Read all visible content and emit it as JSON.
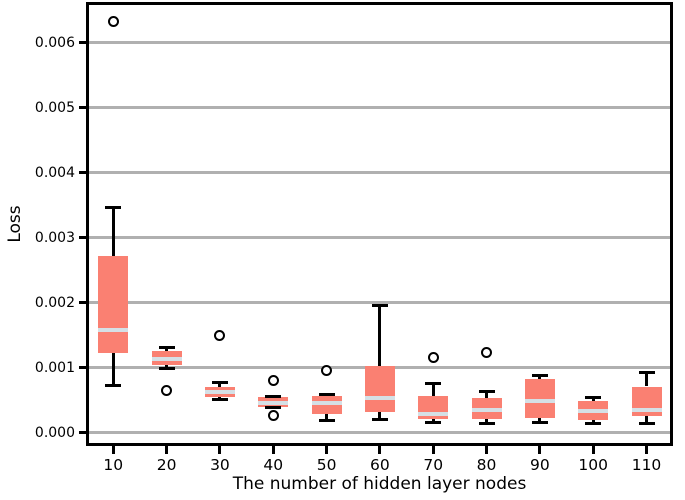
{
  "chart_data": {
    "type": "box",
    "title": "",
    "xlabel": "The number of hidden layer nodes",
    "ylabel": "Loss",
    "categories": [
      "10",
      "20",
      "30",
      "40",
      "50",
      "60",
      "70",
      "80",
      "90",
      "100",
      "110"
    ],
    "boxes": [
      {
        "whislo": 0.00073,
        "q1": 0.00123,
        "med": 0.00158,
        "q3": 0.00272,
        "whishi": 0.00346,
        "fliers": [
          0.00632
        ]
      },
      {
        "whislo": 0.00098,
        "q1": 0.00104,
        "med": 0.00113,
        "q3": 0.00126,
        "whishi": 0.00131,
        "fliers": [
          0.00065
        ]
      },
      {
        "whislo": 0.00051,
        "q1": 0.00055,
        "med": 0.00063,
        "q3": 0.0007,
        "whishi": 0.00077,
        "fliers": [
          0.0015
        ]
      },
      {
        "whislo": 0.00038,
        "q1": 0.0004,
        "med": 0.00045,
        "q3": 0.00055,
        "whishi": 0.00056,
        "fliers": [
          0.0008,
          0.00027
        ]
      },
      {
        "whislo": 0.00018,
        "q1": 0.00028,
        "med": 0.00046,
        "q3": 0.00056,
        "whishi": 0.00058,
        "fliers": [
          0.00095
        ]
      },
      {
        "whislo": 0.0002,
        "q1": 0.00032,
        "med": 0.00054,
        "q3": 0.00103,
        "whishi": 0.00196,
        "fliers": []
      },
      {
        "whislo": 0.00016,
        "q1": 0.00021,
        "med": 0.00029,
        "q3": 0.00057,
        "whishi": 0.00075,
        "fliers": [
          0.00115
        ]
      },
      {
        "whislo": 0.00014,
        "q1": 0.00021,
        "med": 0.00035,
        "q3": 0.00053,
        "whishi": 0.00064,
        "fliers": [
          0.00123
        ]
      },
      {
        "whislo": 0.00015,
        "q1": 0.00022,
        "med": 0.00048,
        "q3": 0.00083,
        "whishi": 0.00088,
        "fliers": []
      },
      {
        "whislo": 0.00014,
        "q1": 0.0002,
        "med": 0.00033,
        "q3": 0.00049,
        "whishi": 0.00054,
        "fliers": []
      },
      {
        "whislo": 0.00014,
        "q1": 0.00026,
        "med": 0.00035,
        "q3": 0.00071,
        "whishi": 0.00092,
        "fliers": []
      }
    ],
    "yticks": [
      0.0,
      0.001,
      0.002,
      0.003,
      0.004,
      0.005,
      0.006
    ],
    "ytick_labels": [
      "0.000",
      "0.001",
      "0.002",
      "0.003",
      "0.004",
      "0.005",
      "0.006"
    ],
    "ylim": [
      -0.00019,
      0.00661
    ],
    "grid": "horizontal",
    "legend": null,
    "colors": {
      "box_fill": "#FA8072",
      "median": "#D5E0E6",
      "whisker": "#000000",
      "cap": "#000000",
      "outlier_edge": "#000000",
      "outlier_fill": "#FFFFFF",
      "grid": "#B0B0B0",
      "spine": "#000000",
      "background": "#FFFFFF"
    }
  }
}
